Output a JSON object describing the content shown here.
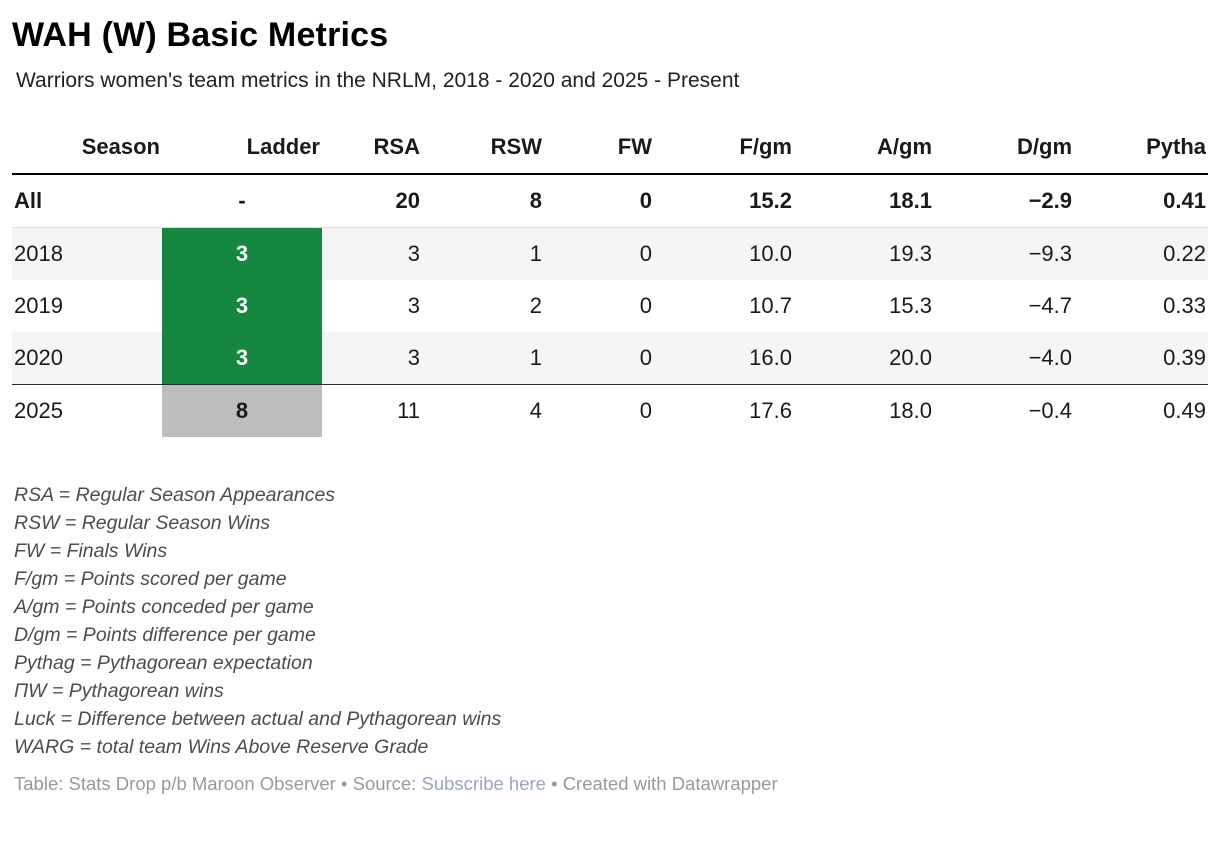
{
  "header": {
    "title": "WAH (W) Basic Metrics",
    "subtitle": "Warriors women's team metrics in the NRLM, 2018 - 2020 and 2025 - Present"
  },
  "table": {
    "columns": [
      "Season",
      "Ladder",
      "RSA",
      "RSW",
      "FW",
      "F/gm",
      "A/gm",
      "D/gm",
      "Pytha"
    ],
    "rows": [
      {
        "season": "All",
        "ladder": "-",
        "ladder_style": "none",
        "cells": [
          "20",
          "8",
          "0",
          "15.2",
          "18.1",
          "−2.9",
          "0.41"
        ]
      },
      {
        "season": "2018",
        "ladder": "3",
        "ladder_style": "green",
        "cells": [
          "3",
          "1",
          "0",
          "10.0",
          "19.3",
          "−9.3",
          "0.22"
        ]
      },
      {
        "season": "2019",
        "ladder": "3",
        "ladder_style": "green",
        "cells": [
          "3",
          "2",
          "0",
          "10.7",
          "15.3",
          "−4.7",
          "0.33"
        ]
      },
      {
        "season": "2020",
        "ladder": "3",
        "ladder_style": "green",
        "cells": [
          "3",
          "1",
          "0",
          "16.0",
          "20.0",
          "−4.0",
          "0.39"
        ]
      },
      {
        "season": "2025",
        "ladder": "8",
        "ladder_style": "gray",
        "cells": [
          "11",
          "4",
          "0",
          "17.6",
          "18.0",
          "−0.4",
          "0.49"
        ]
      }
    ]
  },
  "footnotes": [
    "RSA = Regular Season Appearances",
    "RSW = Regular Season Wins",
    "FW = Finals Wins",
    "F/gm = Points scored per game",
    "A/gm = Points conceded per game",
    "D/gm = Points difference per game",
    "Pythag = Pythagorean expectation",
    "ΠW = Pythagorean wins",
    "Luck = Difference between actual and Pythagorean wins",
    "WARG = total team Wins Above Reserve Grade"
  ],
  "footer": {
    "prefix": "Table: Stats Drop p/b Maroon Observer • Source: ",
    "link_label": "Subscribe here",
    "suffix": " • Created with Datawrapper"
  },
  "colors": {
    "ladder_green": "#16873f",
    "ladder_gray": "#bdbdbd",
    "stripe": "#f5f5f5"
  }
}
